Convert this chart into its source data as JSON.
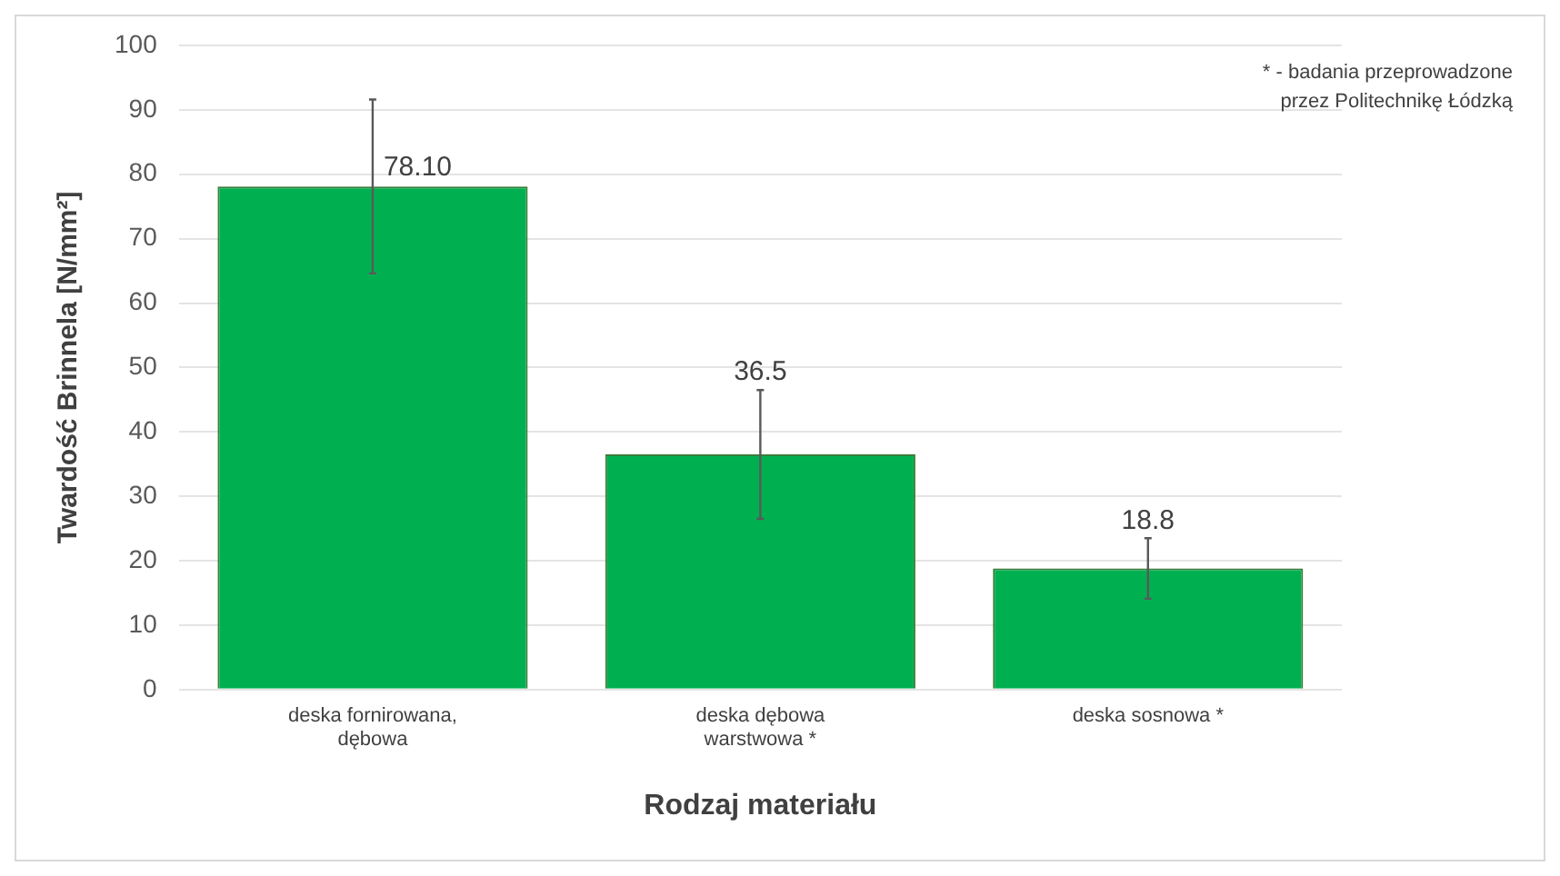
{
  "chart_data": {
    "type": "bar",
    "xlabel": "Rodzaj materiału",
    "ylabel": "Twardość Brinnela [N/mm²]",
    "categories": [
      "deska fornirowana, dębowa",
      "deska dębowa warstwowa *",
      "deska sosnowa *"
    ],
    "values": [
      78.1,
      36.5,
      18.8
    ],
    "value_labels": [
      "78.10",
      "36.5",
      "18.8"
    ],
    "errors": [
      13.5,
      10,
      4.7
    ],
    "color": "#00b050",
    "ylim": [
      0,
      100
    ],
    "yticks": [
      0,
      10,
      20,
      30,
      40,
      50,
      60,
      70,
      80,
      90,
      100
    ],
    "grid": "y",
    "legend": false,
    "annotations": [
      "* - badania przeprowadzone przez Politechnikę Łódzką"
    ]
  }
}
